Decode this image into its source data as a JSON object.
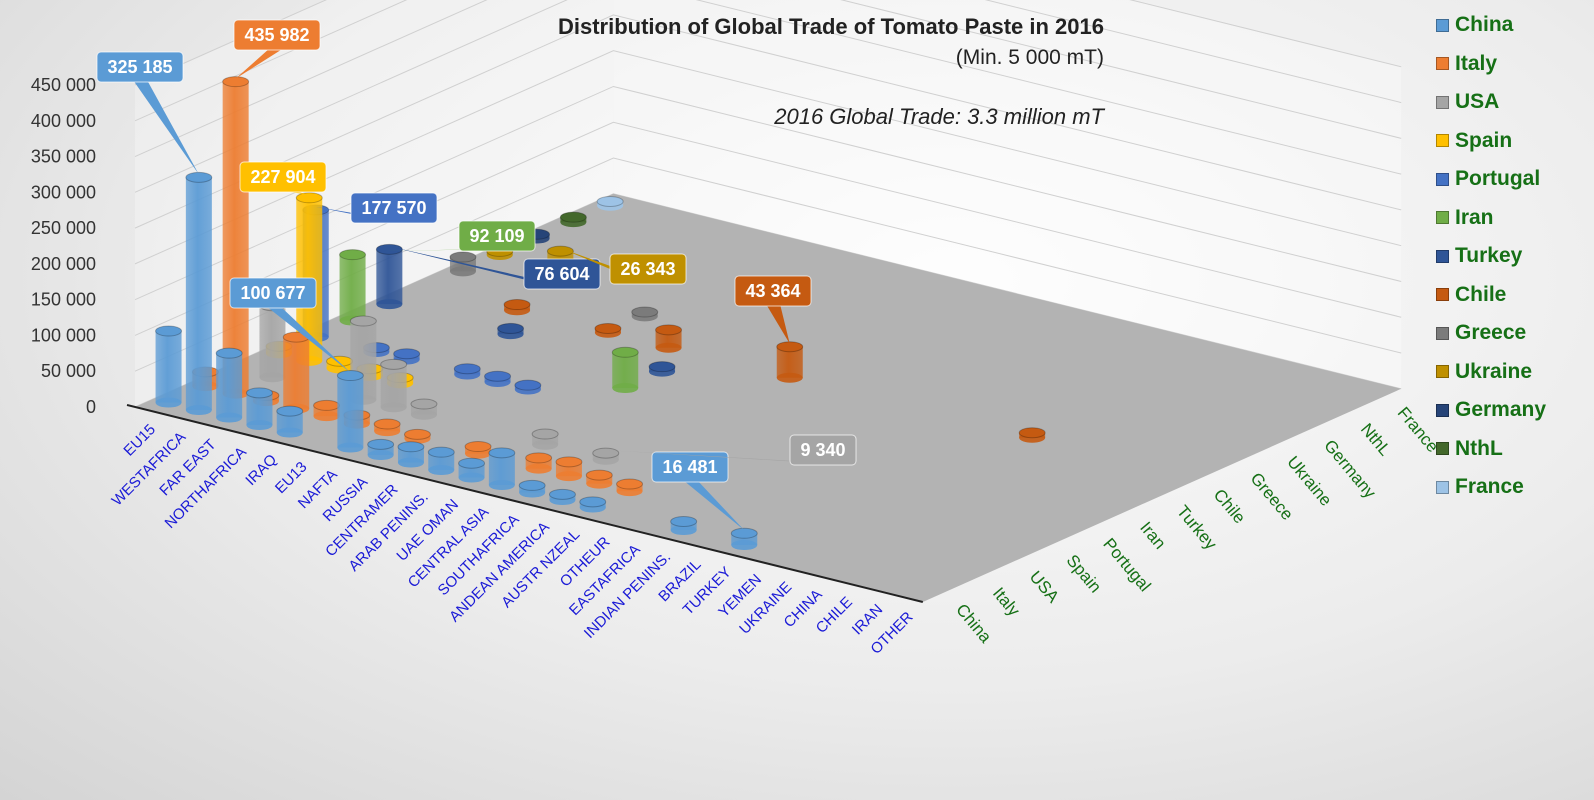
{
  "title": "Distribution  of Global Trade of Tomato Paste in 2016",
  "subtitle": "(Min. 5 000 mT)",
  "note": "2016 Global Trade: 3.3 million mT",
  "chart_data": {
    "type": "bar3d-cylinder",
    "title": "Distribution  of Global Trade of Tomato Paste in 2016",
    "ylim": [
      0,
      450000
    ],
    "yticks": [
      "0",
      "50 000",
      "100 000",
      "150 000",
      "200 000",
      "250 000",
      "300 000",
      "350 000",
      "400 000",
      "450 000"
    ],
    "categories": [
      "EU15",
      "WESTAFRICA",
      "FAR EAST",
      "NORTHAFRICA",
      "IRAQ",
      "EU13",
      "NAFTA",
      "RUSSIA",
      "CENTRAMER",
      "ARAB PENINS.",
      "UAE OMAN",
      "CENTRAL ASIA",
      "SOUTHAFRICA",
      "ANDEAN  AMERICA",
      "AUSTR NZEAL",
      "OTHEUR",
      "EASTAFRICA",
      "INDIAN  PENINS.",
      "BRAZIL",
      "TURKEY",
      "YEMEN",
      "UKRAINE",
      "CHINA",
      "CHILE",
      "IRAN",
      "OTHER"
    ],
    "series": [
      {
        "name": "China",
        "color": "#5b9bd5",
        "points": [
          [
            0,
            100000
          ],
          [
            1,
            325185
          ],
          [
            2,
            90000
          ],
          [
            3,
            45000
          ],
          [
            4,
            30000
          ],
          [
            6,
            100677
          ],
          [
            7,
            15000
          ],
          [
            8,
            22000
          ],
          [
            9,
            25000
          ],
          [
            10,
            20000
          ],
          [
            11,
            45000
          ],
          [
            12,
            10000
          ],
          [
            13,
            8000
          ],
          [
            14,
            8000
          ],
          [
            17,
            12000
          ],
          [
            19,
            16481
          ]
        ],
        "labels": [
          [
            1,
            "325 185"
          ],
          [
            6,
            "100 677"
          ],
          [
            19,
            "16 481"
          ]
        ]
      },
      {
        "name": "Italy",
        "color": "#ed7d31",
        "points": [
          [
            0,
            20000
          ],
          [
            1,
            435982
          ],
          [
            2,
            8000
          ],
          [
            3,
            100000
          ],
          [
            4,
            15000
          ],
          [
            5,
            12000
          ],
          [
            6,
            10000
          ],
          [
            7,
            6000
          ],
          [
            9,
            10000
          ],
          [
            11,
            15000
          ],
          [
            12,
            20000
          ],
          [
            13,
            12000
          ],
          [
            14,
            10000
          ]
        ],
        "labels": [
          [
            1,
            "435 982"
          ]
        ]
      },
      {
        "name": "USA",
        "color": "#a5a5a5",
        "points": [
          [
            1,
            100000
          ],
          [
            4,
            110000
          ],
          [
            5,
            60000
          ],
          [
            6,
            15000
          ],
          [
            10,
            15000
          ],
          [
            12,
            9340
          ]
        ],
        "labels": [
          [
            12,
            "9 340"
          ]
        ]
      },
      {
        "name": "Spain",
        "color": "#ffc000",
        "points": [
          [
            0,
            10000
          ],
          [
            1,
            227904
          ],
          [
            2,
            10000
          ],
          [
            3,
            10000
          ],
          [
            4,
            8000
          ]
        ],
        " labels": [],
        "labels": [
          [
            1,
            "227 904"
          ]
        ]
      },
      {
        "name": "Portugal",
        "color": "#4472c4",
        "points": [
          [
            0,
            177570
          ],
          [
            2,
            6000
          ],
          [
            3,
            8000
          ],
          [
            5,
            8000
          ],
          [
            6,
            8000
          ],
          [
            7,
            6000
          ]
        ],
        "labels": [
          [
            0,
            "177 570"
          ]
        ]
      },
      {
        "name": "Iran",
        "color": "#70ad47",
        "points": [
          [
            0,
            92109
          ],
          [
            9,
            50000
          ]
        ],
        "labels": [
          [
            0,
            "92 109"
          ]
        ]
      },
      {
        "name": "Turkey",
        "color": "#2f5597",
        "points": [
          [
            0,
            76604
          ],
          [
            4,
            8000
          ],
          [
            9,
            7000
          ]
        ],
        "labels": [
          [
            0,
            "76 604"
          ]
        ]
      },
      {
        "name": "Chile",
        "color": "#c55a11",
        "points": [
          [
            3,
            8000
          ],
          [
            6,
            6000
          ],
          [
            8,
            25000
          ],
          [
            12,
            43364
          ],
          [
            20,
            7000
          ]
        ],
        "labels": [
          [
            12,
            "43 364"
          ]
        ]
      },
      {
        "name": "Greece",
        "color": "#7b7b7b",
        "points": [
          [
            0,
            20000
          ],
          [
            6,
            6000
          ]
        ],
        "labels": []
      },
      {
        "name": "Ukraine",
        "color": "#bf9000",
        "points": [
          [
            2,
            26343
          ],
          [
            0,
            5000
          ]
        ],
        "labels": [
          [
            2,
            "26 343"
          ]
        ]
      },
      {
        "name": "Germany",
        "color": "#264478",
        "points": [
          [
            0,
            6000
          ],
          [
            4,
            6000
          ]
        ],
        "labels": []
      },
      {
        "name": "NthL",
        "color": "#43682b",
        "points": [
          [
            0,
            7000
          ]
        ],
        "labels": []
      },
      {
        "name": "France",
        "color": "#9dc3e6",
        "points": [
          [
            0,
            6000
          ]
        ],
        "labels": []
      }
    ]
  }
}
